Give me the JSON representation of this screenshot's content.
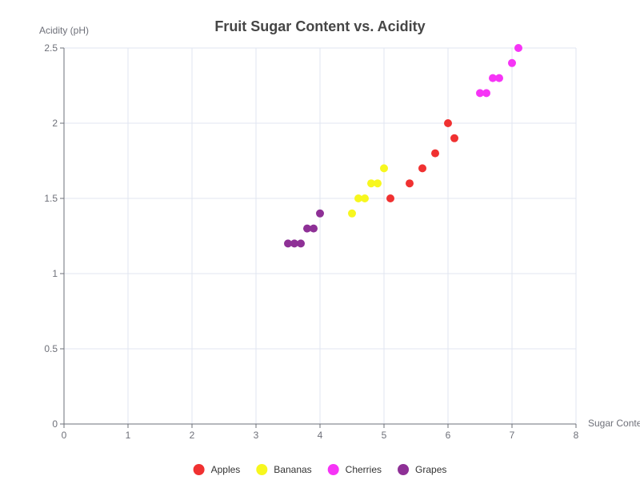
{
  "chart_data": {
    "type": "scatter",
    "title": "Fruit Sugar Content vs. Acidity",
    "xlabel": "Sugar Content",
    "ylabel": "Acidity (pH)",
    "xlim": [
      0,
      8
    ],
    "ylim": [
      0,
      2.5
    ],
    "x_ticks": [
      0,
      1,
      2,
      3,
      4,
      5,
      6,
      7,
      8
    ],
    "y_ticks": [
      0,
      0.5,
      1,
      1.5,
      2,
      2.5
    ],
    "grid": true,
    "legend_position": "bottom",
    "series": [
      {
        "name": "Apples",
        "color": "#f03131",
        "points": [
          [
            5.1,
            1.5
          ],
          [
            5.4,
            1.6
          ],
          [
            5.6,
            1.7
          ],
          [
            5.8,
            1.8
          ],
          [
            6.0,
            2.0
          ],
          [
            6.1,
            1.9
          ]
        ]
      },
      {
        "name": "Bananas",
        "color": "#f7f71e",
        "points": [
          [
            4.5,
            1.4
          ],
          [
            4.6,
            1.5
          ],
          [
            4.7,
            1.5
          ],
          [
            4.8,
            1.6
          ],
          [
            4.9,
            1.6
          ],
          [
            5.0,
            1.7
          ]
        ]
      },
      {
        "name": "Cherries",
        "color": "#f634f6",
        "points": [
          [
            6.5,
            2.2
          ],
          [
            6.6,
            2.2
          ],
          [
            6.7,
            2.3
          ],
          [
            6.8,
            2.3
          ],
          [
            7.0,
            2.4
          ],
          [
            7.1,
            2.5
          ]
        ]
      },
      {
        "name": "Grapes",
        "color": "#8e3096",
        "points": [
          [
            3.5,
            1.2
          ],
          [
            3.6,
            1.2
          ],
          [
            3.7,
            1.2
          ],
          [
            3.8,
            1.3
          ],
          [
            3.9,
            1.3
          ],
          [
            4.0,
            1.4
          ]
        ]
      }
    ]
  }
}
